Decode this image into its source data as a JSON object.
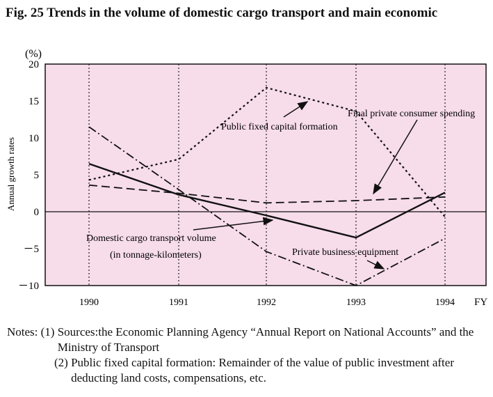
{
  "figure": {
    "title": "Fig. 25 Trends in the volume of domestic cargo transport and main economic"
  },
  "chart_data": {
    "type": "line",
    "x": [
      "1990",
      "1991",
      "1992",
      "1993",
      "1994"
    ],
    "xlabel": "FY",
    "ylabel": "Annual growth rates",
    "yunit": "(%)",
    "ylim": [
      -10,
      20
    ],
    "yticks": [
      "20",
      "15",
      "10",
      "5",
      "0",
      "－5",
      "－10"
    ],
    "yticks_values": [
      20,
      15,
      10,
      5,
      0,
      -5,
      -10
    ],
    "plot_background": "#f7dcea",
    "grid": "vertical dotted lines at each fiscal year",
    "series": [
      {
        "name": "Domestic cargo transport volume (in tonnage-kilometers)",
        "style": "solid",
        "values": [
          6.5,
          2.3,
          -0.5,
          -3.5,
          2.6
        ]
      },
      {
        "name": "Public fixed capital formation",
        "style": "dotted",
        "values": [
          4.3,
          7.1,
          16.8,
          13.6,
          -0.7
        ]
      },
      {
        "name": "Final private consumer spending",
        "style": "dashed",
        "values": [
          3.6,
          2.5,
          1.2,
          1.5,
          2.0
        ]
      },
      {
        "name": "Private business equipment",
        "style": "dash-dot",
        "values": [
          11.5,
          3.0,
          -5.4,
          -10.0,
          -3.6
        ]
      }
    ],
    "annotations": {
      "public_fixed": "Public fixed capital formation",
      "final_private": "Final private consumer spending",
      "domestic_line1": "Domestic cargo transport volume",
      "domestic_line2": "(in tonnage-kilometers)",
      "private_business": "Private business equipment"
    }
  },
  "notes": {
    "label": "Notes:",
    "items": [
      {
        "num": "(1)",
        "text": "Sources:the Economic Planning Agency “Annual Report on National Accounts” and the Ministry of Transport"
      },
      {
        "num": "(2)",
        "text": "Public fixed capital formation: Remainder of the value of public investment after deducting land costs, compensations, etc."
      }
    ]
  }
}
